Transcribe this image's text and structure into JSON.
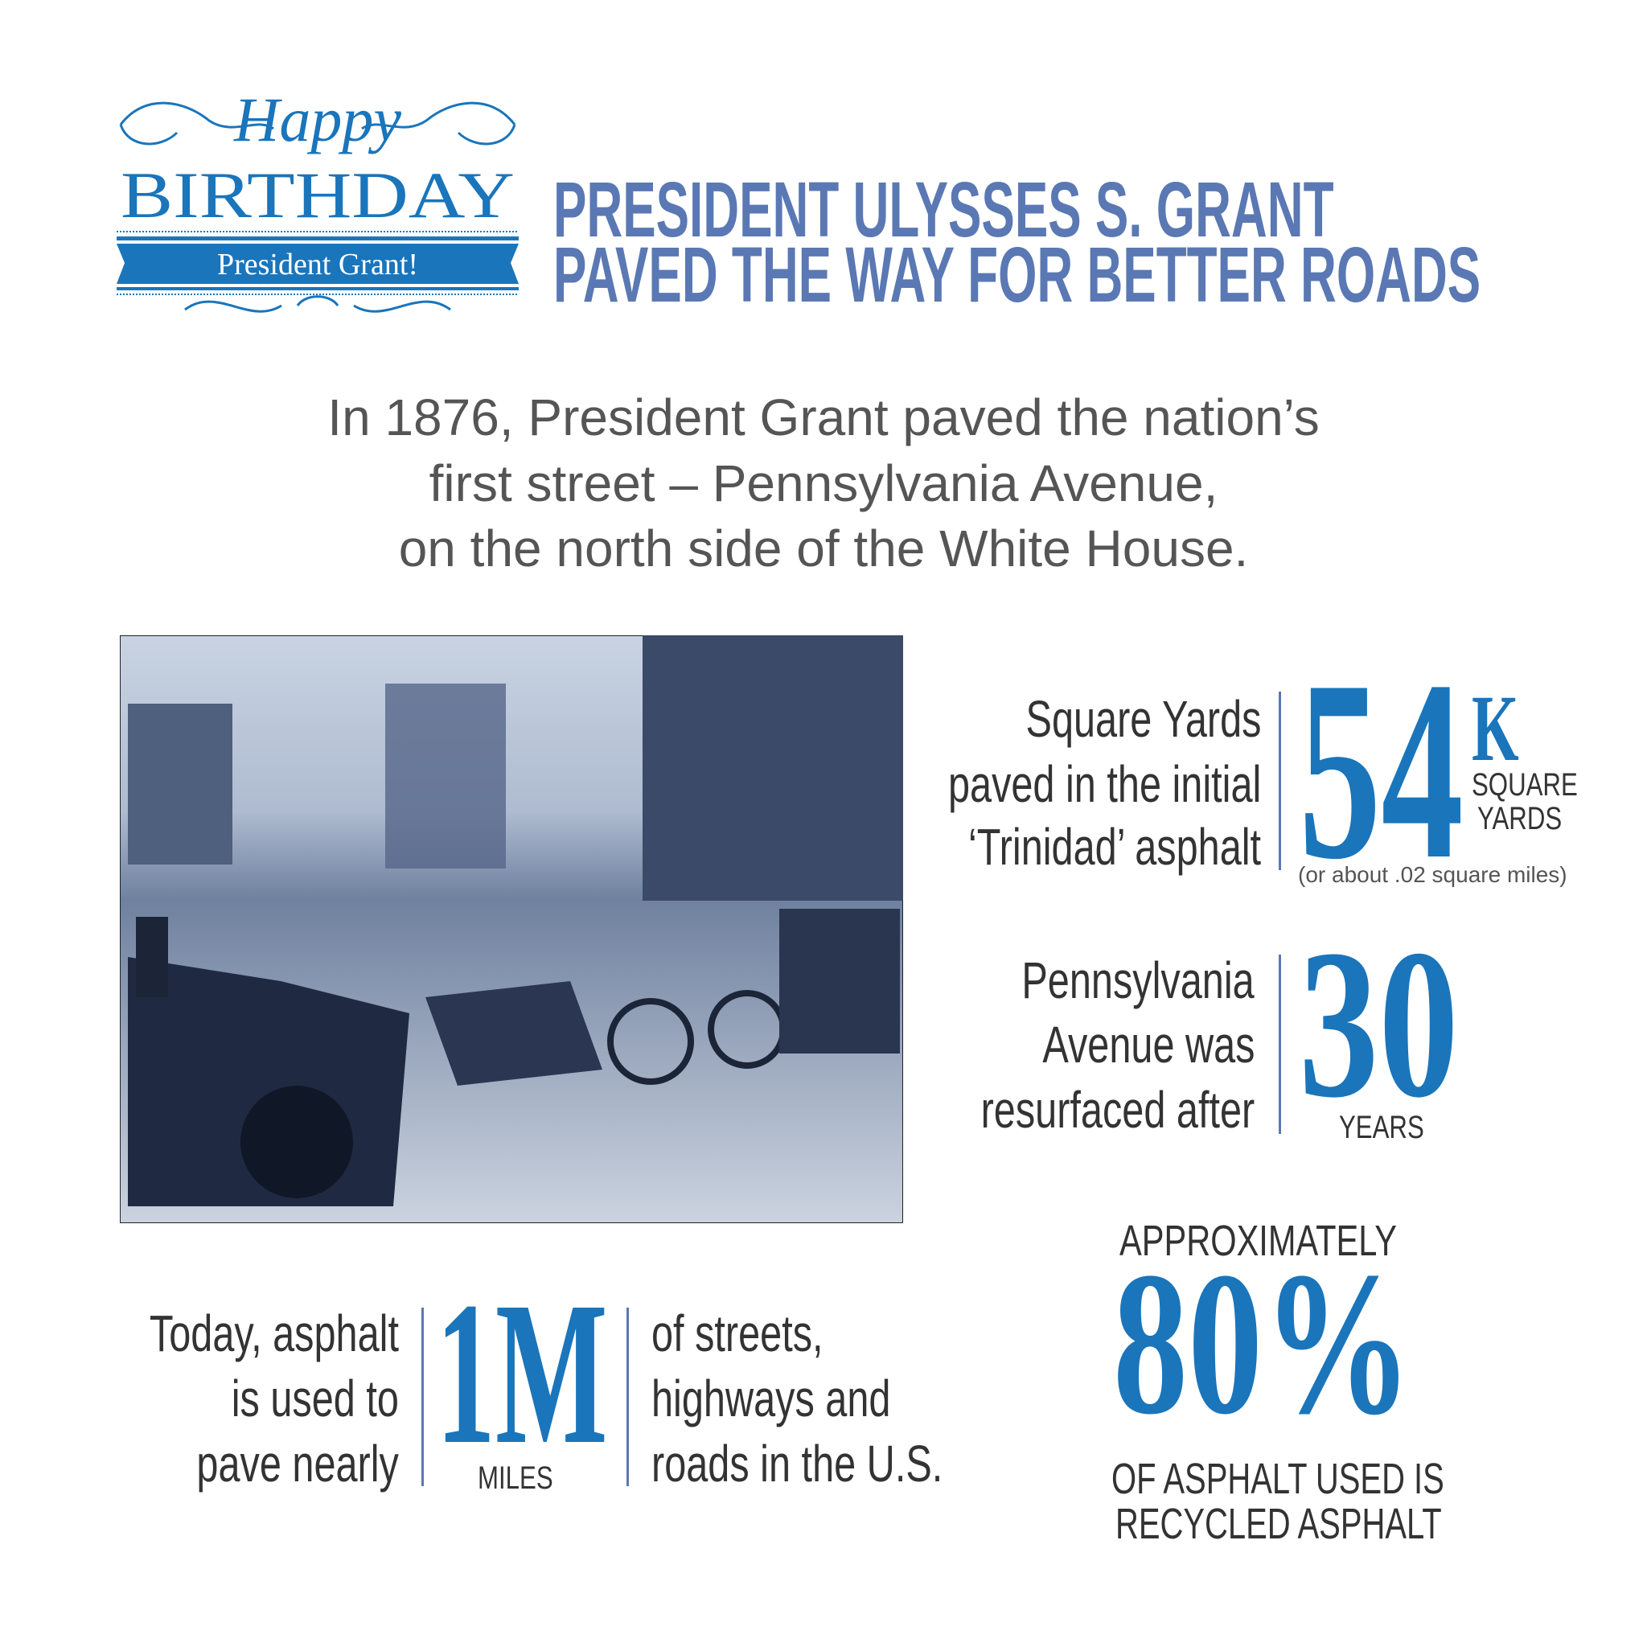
{
  "logo": {
    "script": "Happy",
    "word": "BIRTHDAY",
    "banner": "President Grant!"
  },
  "title": {
    "line1": "PRESIDENT ULYSSES S. GRANT",
    "line2": "PAVED THE WAY FOR BETTER ROADS"
  },
  "intro": {
    "lines": [
      "In 1876, President Grant paved the nation’s",
      "first street – Pennsylvania Avenue,",
      "on the north side of the White House."
    ]
  },
  "stat_area": {
    "lines": [
      "Square Yards",
      "paved in the initial",
      "‘Trinidad’ asphalt"
    ],
    "value": "54",
    "suffix": "K",
    "unit_line1": "SQUARE",
    "unit_line2": "YARDS",
    "note": "(or about .02 square miles)"
  },
  "stat_years": {
    "lines": [
      "Pennsylvania",
      "Avenue was",
      "resurfaced after"
    ],
    "value": "30",
    "unit": "YEARS"
  },
  "stat_miles": {
    "left_lines": [
      "Today, asphalt",
      "is used to",
      "pave nearly"
    ],
    "value": "1M",
    "unit": "MILES",
    "right_lines": [
      "of streets,",
      "highways and",
      "roads in the U.S."
    ]
  },
  "stat_recycled": {
    "top": "APPROXIMATELY",
    "value": "80%",
    "bottom1": "OF ASPHALT USED IS",
    "bottom2": "RECYCLED ASPHALT"
  },
  "colors": {
    "title": "#5a78b3",
    "accent": "#1a75bb",
    "text": "#333333"
  }
}
